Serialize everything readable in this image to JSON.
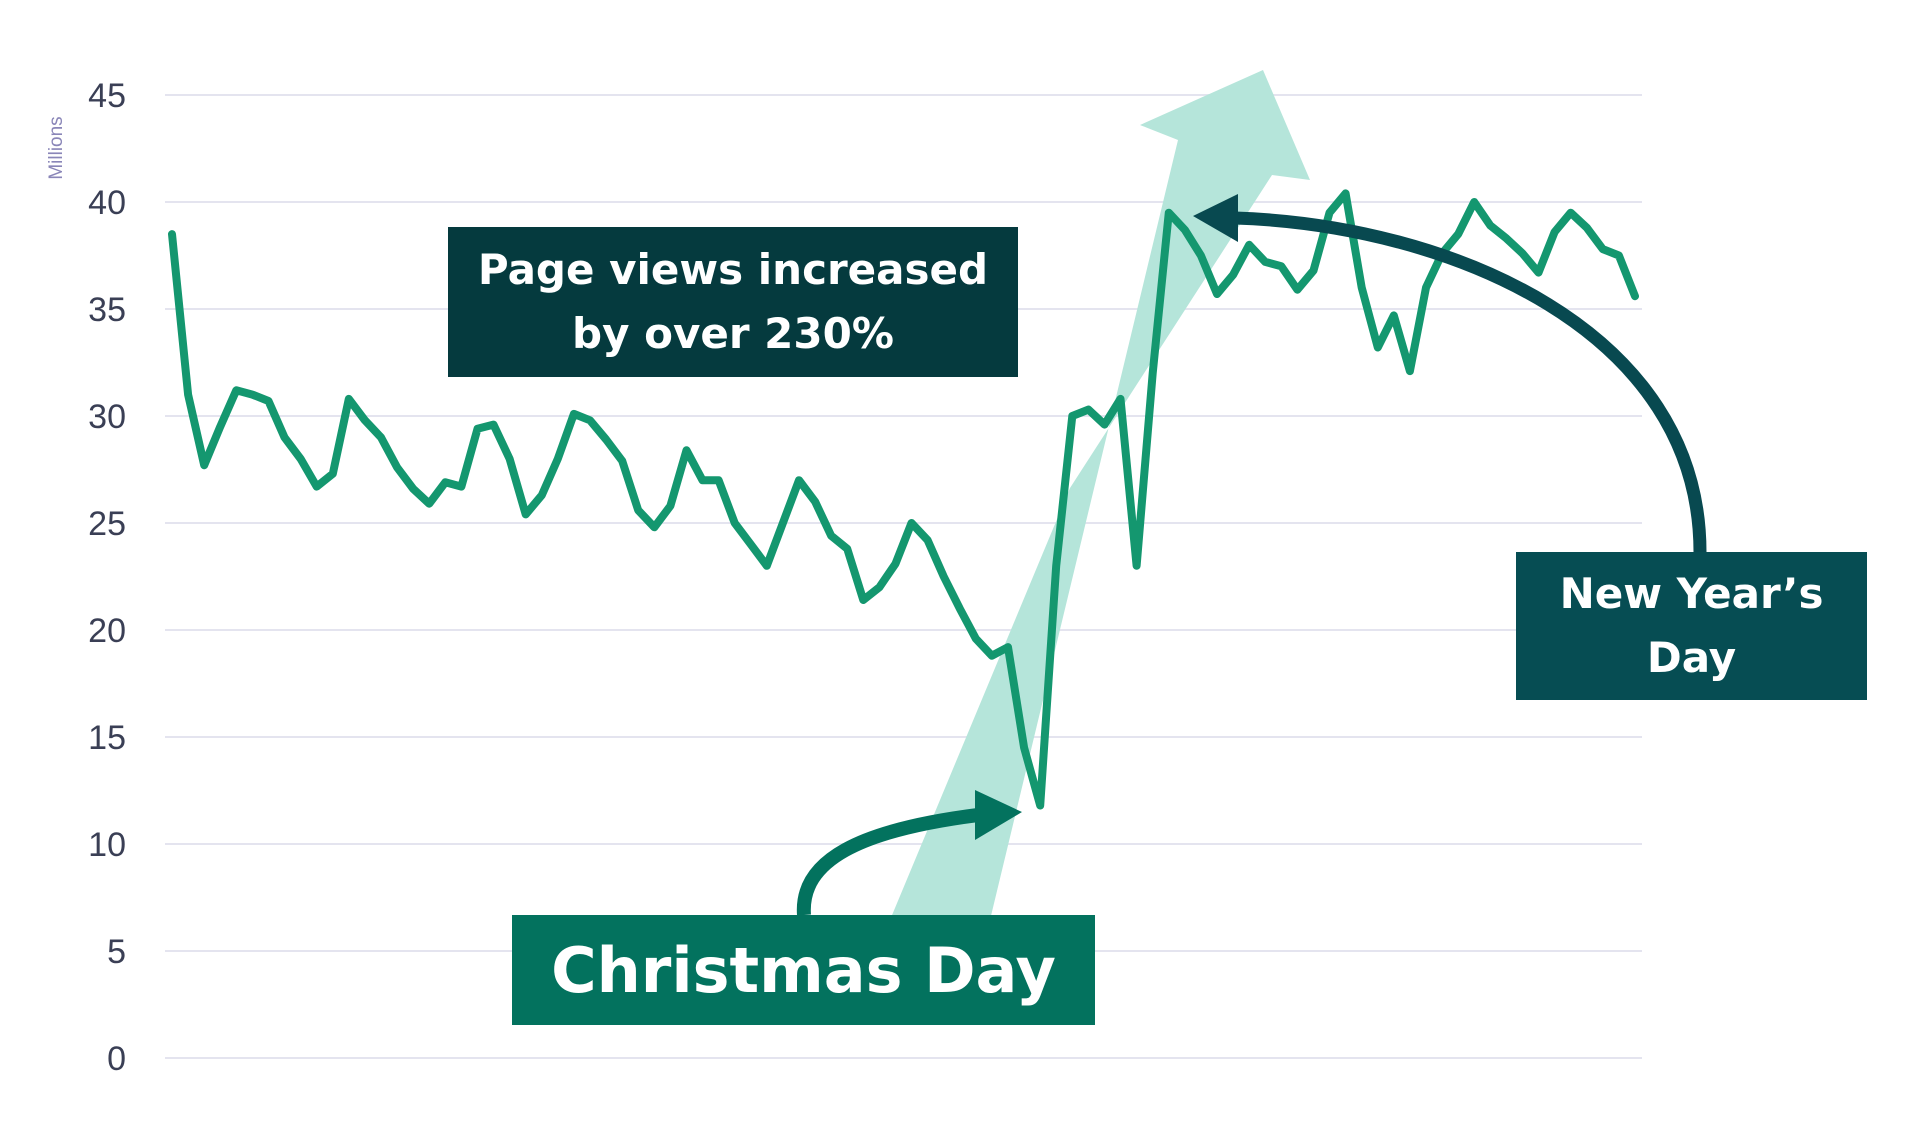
{
  "chart_data": {
    "type": "line",
    "ylabel": "Millions",
    "ylim": [
      0,
      45
    ],
    "yticks": [
      0,
      5,
      10,
      15,
      20,
      25,
      30,
      35,
      40,
      45
    ],
    "grid": true,
    "series": [
      {
        "color": "#14976f",
        "values": [
          38.5,
          31,
          27.7,
          29.5,
          31.2,
          31,
          30.7,
          29,
          28,
          26.7,
          27.3,
          30.8,
          29.8,
          29,
          27.6,
          26.6,
          25.9,
          26.9,
          26.7,
          29.4,
          29.6,
          28,
          25.4,
          26.3,
          28,
          30.1,
          29.8,
          28.9,
          27.9,
          25.6,
          24.8,
          25.8,
          28.4,
          27,
          27,
          25,
          24,
          23,
          25,
          27,
          26,
          24.4,
          23.8,
          21.4,
          22,
          23.1,
          25,
          24.2,
          22.5,
          21,
          19.6,
          18.8,
          19.2,
          14.5,
          11.8,
          23,
          30,
          30.3,
          29.6,
          30.8,
          23,
          32,
          39.5,
          38.7,
          37.5,
          35.7,
          36.6,
          38,
          37.2,
          37,
          35.9,
          36.8,
          39.5,
          40.4,
          36,
          33.2,
          34.7,
          32.1,
          36,
          37.6,
          38.5,
          40,
          38.9,
          38.3,
          37.6,
          36.7,
          38.6,
          39.5,
          38.8,
          37.8,
          37.5,
          35.6
        ]
      }
    ],
    "annotations": [
      {
        "id": "headline",
        "text_lines": [
          "Page views increased",
          "by over 230%"
        ]
      },
      {
        "id": "christmas",
        "text": "Christmas Day",
        "x_index": 54
      },
      {
        "id": "newyear",
        "text_lines": [
          "New Year’s",
          "Day"
        ],
        "x_index": 62
      }
    ]
  },
  "colors": {
    "line": "#14976f",
    "gridline": "#e4e4ef",
    "trend_arrow": "#b5e5da",
    "christmas_arrow": "#03725e",
    "newyear_arrow": "#084950"
  }
}
